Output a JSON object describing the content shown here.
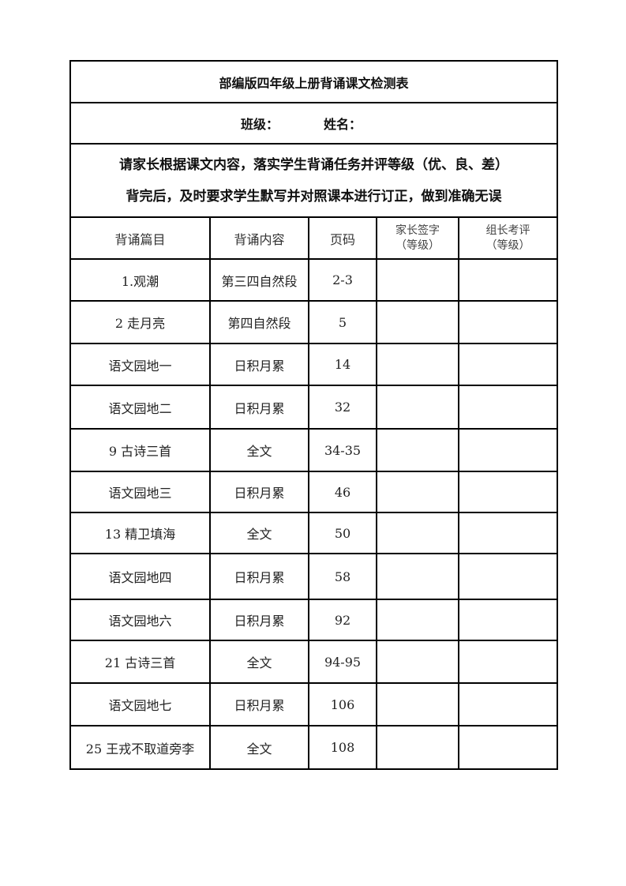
{
  "title": "部编版四年级上册背诵课文检测表",
  "class_label": "班级：",
  "name_label": "姓名：",
  "instructions": [
    "请家长根据课文内容，落实学生背诵任务并评等级（优、良、差）",
    "背完后，及时要求学生默写并对照课本进行订正，做到准确无误"
  ],
  "headers": {
    "item": "背诵篇目",
    "content": "背诵内容",
    "page": "页码",
    "parent_sign": "家长签字",
    "parent_sign_sub": "（等级）",
    "leader_review": "组长考评",
    "leader_review_sub": "（等级）"
  },
  "rows": [
    {
      "item": "1.观潮",
      "content": "第三四自然段",
      "page": "2-3"
    },
    {
      "item": "2 走月亮",
      "content": "第四自然段",
      "page": "5"
    },
    {
      "item": "语文园地一",
      "content": "日积月累",
      "page": "14"
    },
    {
      "item": "语文园地二",
      "content": "日积月累",
      "page": "32"
    },
    {
      "item": "9 古诗三首",
      "content": "全文",
      "page": "34-35"
    },
    {
      "item": "语文园地三",
      "content": "日积月累",
      "page": "46"
    },
    {
      "item": "13 精卫填海",
      "content": "全文",
      "page": "50"
    },
    {
      "item": "语文园地四",
      "content": "日积月累",
      "page": "58"
    },
    {
      "item": "语文园地六",
      "content": "日积月累",
      "page": "92"
    },
    {
      "item": "21 古诗三首",
      "content": "全文",
      "page": "94-95"
    },
    {
      "item": "语文园地七",
      "content": "日积月累",
      "page": "106"
    },
    {
      "item": "25 王戎不取道旁李",
      "content": "全文",
      "page": "108"
    }
  ]
}
